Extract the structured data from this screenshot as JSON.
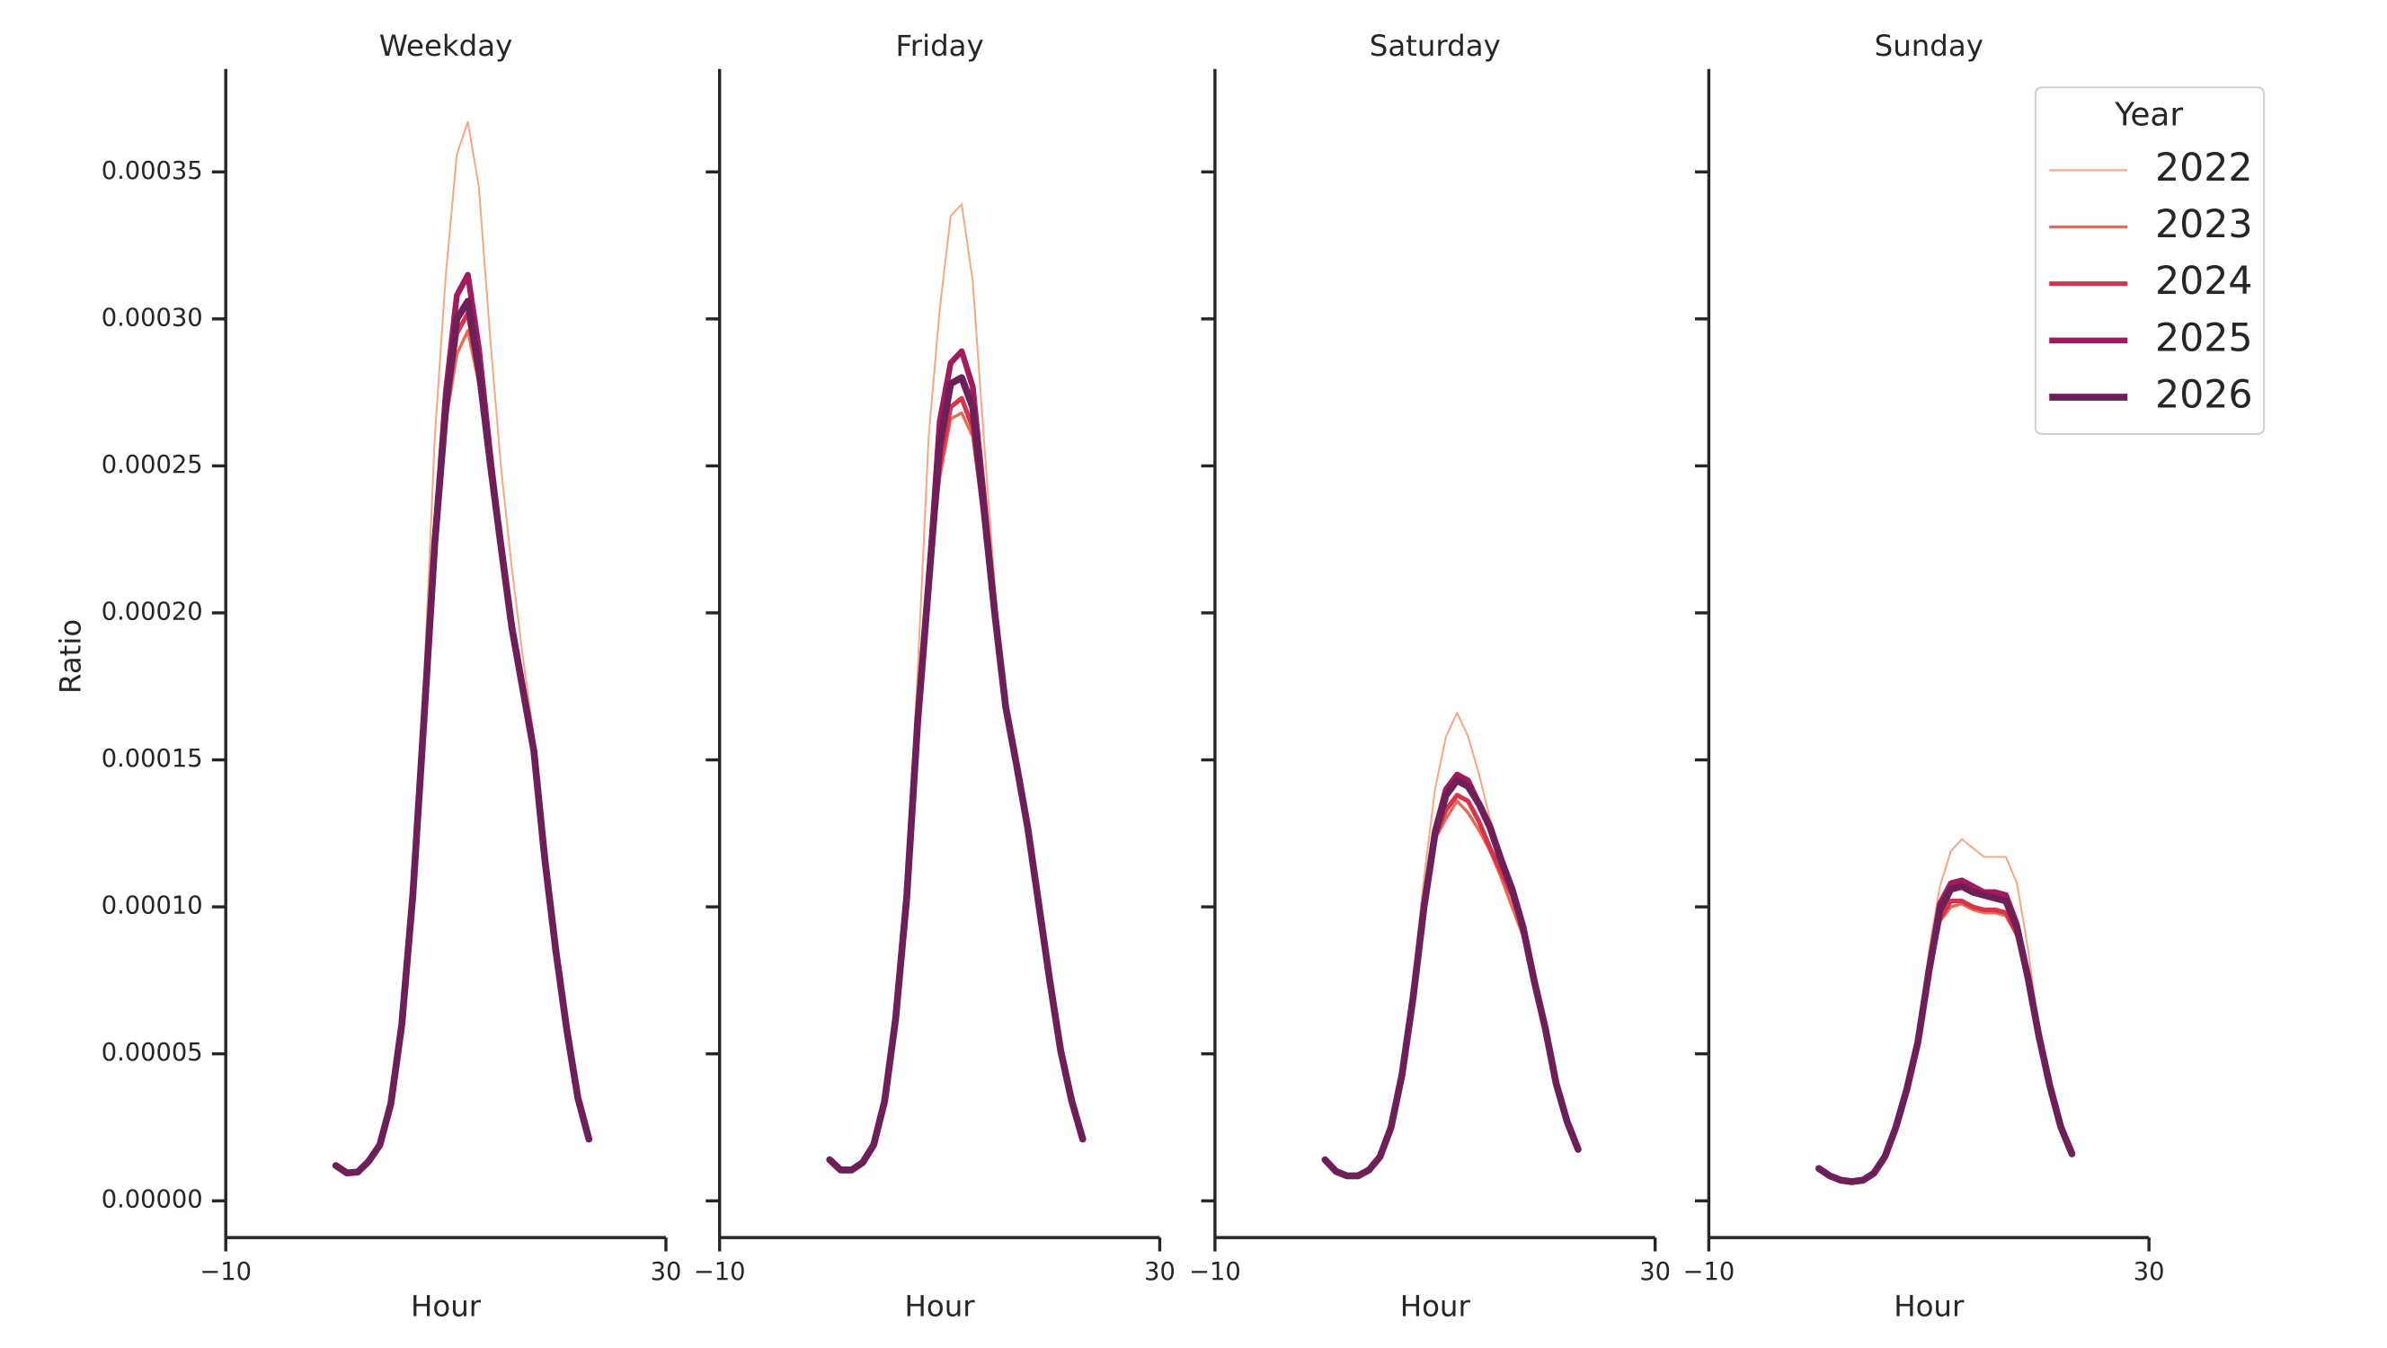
{
  "chart_data": [
    {
      "type": "line",
      "title": "Weekday",
      "xlabel": "Hour",
      "ylabel": "Ratio",
      "x": [
        0,
        1,
        2,
        3,
        4,
        5,
        6,
        7,
        8,
        9,
        10,
        11,
        12,
        13,
        14,
        15,
        16,
        17,
        18,
        19,
        20,
        21,
        22,
        23
      ],
      "xlim": [
        -10,
        30
      ],
      "xticks": [
        {
          "value": -10,
          "label": "−10"
        },
        30
      ],
      "ylim": [
        -1.25e-05,
        0.000385
      ],
      "yticks": [
        {
          "value": 0,
          "label": "0.00000"
        },
        {
          "value": 5e-05,
          "label": "0.00005"
        },
        {
          "value": 0.0001,
          "label": "0.00010"
        },
        {
          "value": 0.00015,
          "label": "0.00015"
        },
        {
          "value": 0.0002,
          "label": "0.00020"
        },
        {
          "value": 0.00025,
          "label": "0.00025"
        },
        {
          "value": 0.0003,
          "label": "0.00030"
        },
        {
          "value": 0.00035,
          "label": "0.00035"
        }
      ],
      "series": [
        {
          "name": "2022",
          "color": "#f4a886",
          "values": [
            1.2e-05,
            9.5e-06,
            9.8e-06,
            1.35e-05,
            1.9e-05,
            3.3e-05,
            6e-05,
            0.000115,
            0.000175,
            0.00026,
            0.000315,
            0.000356,
            0.000367,
            0.000345,
            0.000295,
            0.00025,
            0.000215,
            0.000185,
            0.000158,
            0.000116,
            8.5e-05,
            5.8e-05,
            3.5e-05,
            2.1e-05
          ]
        },
        {
          "name": "2023",
          "color": "#eb6a4f",
          "values": [
            1.2e-05,
            9.5e-06,
            9.8e-06,
            1.35e-05,
            1.9e-05,
            3.3e-05,
            6e-05,
            0.000104,
            0.000163,
            0.000224,
            0.000265,
            0.000288,
            0.000296,
            0.000278,
            0.000248,
            0.000223,
            0.000195,
            0.000174,
            0.000153,
            0.000116,
            8.5e-05,
            5.8e-05,
            3.5e-05,
            2.1e-05
          ]
        },
        {
          "name": "2024",
          "color": "#d8334a",
          "values": [
            1.2e-05,
            9.5e-06,
            9.8e-06,
            1.35e-05,
            1.9e-05,
            3.3e-05,
            6e-05,
            0.000104,
            0.000163,
            0.000224,
            0.000268,
            0.000295,
            0.000302,
            0.00028,
            0.00025,
            0.000223,
            0.000195,
            0.000174,
            0.000153,
            0.000116,
            8.5e-05,
            5.8e-05,
            3.5e-05,
            2.1e-05
          ]
        },
        {
          "name": "2025",
          "color": "#a11a5b",
          "values": [
            1.2e-05,
            9.5e-06,
            9.8e-06,
            1.35e-05,
            1.9e-05,
            3.3e-05,
            6e-05,
            0.000104,
            0.000163,
            0.000224,
            0.000275,
            0.000308,
            0.000315,
            0.00029,
            0.000255,
            0.000223,
            0.000195,
            0.000174,
            0.000153,
            0.000116,
            8.5e-05,
            5.8e-05,
            3.5e-05,
            2.1e-05
          ]
        },
        {
          "name": "2026",
          "color": "#6e1f57",
          "values": [
            1.2e-05,
            9.5e-06,
            9.8e-06,
            1.35e-05,
            1.9e-05,
            3.3e-05,
            6e-05,
            0.000104,
            0.000163,
            0.000224,
            0.00027,
            0.0003,
            0.000306,
            0.000283,
            0.000252,
            0.000223,
            0.000195,
            0.000174,
            0.000153,
            0.000116,
            8.5e-05,
            5.8e-05,
            3.5e-05,
            2.1e-05
          ]
        }
      ]
    },
    {
      "type": "line",
      "title": "Friday",
      "xlabel": "Hour",
      "x": [
        0,
        1,
        2,
        3,
        4,
        5,
        6,
        7,
        8,
        9,
        10,
        11,
        12,
        13,
        14,
        15,
        16,
        17,
        18,
        19,
        20,
        21,
        22,
        23
      ],
      "xlim": [
        -10,
        30
      ],
      "xticks": [
        {
          "value": -10,
          "label": "−10"
        },
        30
      ],
      "ylim": [
        -1.25e-05,
        0.000385
      ],
      "yticks": [
        0,
        5e-05,
        0.0001,
        0.00015,
        0.0002,
        0.00025,
        0.0003,
        0.00035
      ],
      "series": [
        {
          "name": "2022",
          "color": "#f4a886",
          "values": [
            1.4e-05,
            1.05e-05,
            1.05e-05,
            1.3e-05,
            1.9e-05,
            3.4e-05,
            6.2e-05,
            0.000108,
            0.00018,
            0.00026,
            0.000303,
            0.000335,
            0.000339,
            0.000313,
            0.00026,
            0.00021,
            0.00017,
            0.000148,
            0.000127,
            0.000101,
            7.5e-05,
            5.1e-05,
            3.4e-05,
            2.1e-05
          ]
        },
        {
          "name": "2023",
          "color": "#eb6a4f",
          "values": [
            1.4e-05,
            1.05e-05,
            1.05e-05,
            1.3e-05,
            1.9e-05,
            3.4e-05,
            6.2e-05,
            0.000103,
            0.000163,
            0.00021,
            0.000246,
            0.000266,
            0.000268,
            0.00026,
            0.000232,
            0.0002,
            0.000168,
            0.000148,
            0.000127,
            0.000101,
            7.5e-05,
            5.1e-05,
            3.4e-05,
            2.1e-05
          ]
        },
        {
          "name": "2024",
          "color": "#d8334a",
          "values": [
            1.4e-05,
            1.05e-05,
            1.05e-05,
            1.3e-05,
            1.9e-05,
            3.4e-05,
            6.2e-05,
            0.000103,
            0.000163,
            0.00021,
            0.00025,
            0.00027,
            0.000273,
            0.000263,
            0.000233,
            0.0002,
            0.000168,
            0.000148,
            0.000127,
            0.000101,
            7.5e-05,
            5.1e-05,
            3.4e-05,
            2.1e-05
          ]
        },
        {
          "name": "2025",
          "color": "#a11a5b",
          "values": [
            1.4e-05,
            1.05e-05,
            1.05e-05,
            1.3e-05,
            1.9e-05,
            3.4e-05,
            6.2e-05,
            0.000103,
            0.000163,
            0.00021,
            0.000265,
            0.000285,
            0.000289,
            0.000277,
            0.00024,
            0.0002,
            0.000168,
            0.000148,
            0.000127,
            0.000101,
            7.5e-05,
            5.1e-05,
            3.4e-05,
            2.1e-05
          ]
        },
        {
          "name": "2026",
          "color": "#6e1f57",
          "values": [
            1.4e-05,
            1.05e-05,
            1.05e-05,
            1.3e-05,
            1.9e-05,
            3.4e-05,
            6.2e-05,
            0.000103,
            0.000163,
            0.00021,
            0.000257,
            0.000278,
            0.00028,
            0.00027,
            0.000236,
            0.0002,
            0.000168,
            0.000148,
            0.000127,
            0.000101,
            7.5e-05,
            5.1e-05,
            3.4e-05,
            2.1e-05
          ]
        }
      ]
    },
    {
      "type": "line",
      "title": "Saturday",
      "xlabel": "Hour",
      "x": [
        0,
        1,
        2,
        3,
        4,
        5,
        6,
        7,
        8,
        9,
        10,
        11,
        12,
        13,
        14,
        15,
        16,
        17,
        18,
        19,
        20,
        21,
        22,
        23
      ],
      "xlim": [
        -10,
        30
      ],
      "xticks": [
        {
          "value": -10,
          "label": "−10"
        },
        30
      ],
      "ylim": [
        -1.25e-05,
        0.000385
      ],
      "yticks": [
        0,
        5e-05,
        0.0001,
        0.00015,
        0.0002,
        0.00025,
        0.0003,
        0.00035
      ],
      "series": [
        {
          "name": "2022",
          "color": "#f4a886",
          "values": [
            1.4e-05,
            1e-05,
            8.5e-06,
            8.5e-06,
            1.05e-05,
            1.5e-05,
            2.5e-05,
            4.5e-05,
            7.5e-05,
            0.00011,
            0.00014,
            0.000158,
            0.000166,
            0.000158,
            0.000145,
            0.00013,
            0.000118,
            0.000106,
            9.3e-05,
            7.5e-05,
            5.9e-05,
            4e-05,
            2.7e-05,
            1.75e-05
          ]
        },
        {
          "name": "2023",
          "color": "#eb6a4f",
          "values": [
            1.4e-05,
            1e-05,
            8.5e-06,
            8.5e-06,
            1.05e-05,
            1.5e-05,
            2.5e-05,
            4.3e-05,
            6.9e-05,
            0.0001,
            0.000123,
            0.00013,
            0.000136,
            0.000132,
            0.000126,
            0.000119,
            0.00011,
            0.0001,
            9e-05,
            7.4e-05,
            5.9e-05,
            4e-05,
            2.7e-05,
            1.75e-05
          ]
        },
        {
          "name": "2024",
          "color": "#d8334a",
          "values": [
            1.4e-05,
            1e-05,
            8.5e-06,
            8.5e-06,
            1.05e-05,
            1.5e-05,
            2.5e-05,
            4.3e-05,
            6.9e-05,
            0.0001,
            0.000124,
            0.000133,
            0.000138,
            0.000136,
            0.000129,
            0.00012,
            0.000112,
            0.000104,
            9.3e-05,
            7.5e-05,
            5.9e-05,
            4e-05,
            2.7e-05,
            1.75e-05
          ]
        },
        {
          "name": "2025",
          "color": "#a11a5b",
          "values": [
            1.4e-05,
            1e-05,
            8.5e-06,
            8.5e-06,
            1.05e-05,
            1.5e-05,
            2.5e-05,
            4.3e-05,
            6.9e-05,
            0.0001,
            0.000126,
            0.00014,
            0.000145,
            0.000143,
            0.000135,
            0.000127,
            0.000116,
            0.000106,
            9.3e-05,
            7.5e-05,
            5.9e-05,
            4e-05,
            2.7e-05,
            1.75e-05
          ]
        },
        {
          "name": "2026",
          "color": "#6e1f57",
          "values": [
            1.4e-05,
            1e-05,
            8.5e-06,
            8.5e-06,
            1.05e-05,
            1.5e-05,
            2.5e-05,
            4.3e-05,
            6.9e-05,
            0.0001,
            0.000125,
            0.000138,
            0.000143,
            0.000141,
            0.000135,
            0.000127,
            0.000116,
            0.000106,
            9.3e-05,
            7.5e-05,
            5.9e-05,
            4e-05,
            2.7e-05,
            1.75e-05
          ]
        }
      ]
    },
    {
      "type": "line",
      "title": "Sunday",
      "xlabel": "Hour",
      "legend_title": "Year",
      "x": [
        0,
        1,
        2,
        3,
        4,
        5,
        6,
        7,
        8,
        9,
        10,
        11,
        12,
        13,
        14,
        15,
        16,
        17,
        18,
        19,
        20,
        21,
        22,
        23
      ],
      "xlim": [
        -10,
        30
      ],
      "xticks": [
        {
          "value": -10,
          "label": "−10"
        },
        30
      ],
      "ylim": [
        -1.25e-05,
        0.000385
      ],
      "yticks": [
        0,
        5e-05,
        0.0001,
        0.00015,
        0.0002,
        0.00025,
        0.0003,
        0.00035
      ],
      "series": [
        {
          "name": "2022",
          "color": "#f4a886",
          "values": [
            1.1e-05,
            8.5e-06,
            7e-06,
            6.5e-06,
            7e-06,
            9.4e-06,
            1.5e-05,
            2.5e-05,
            3.8e-05,
            5.6e-05,
            8.5e-05,
            0.000107,
            0.000119,
            0.000123,
            0.00012,
            0.000117,
            0.000117,
            0.000117,
            0.000108,
            8.6e-05,
            5.8e-05,
            3.9e-05,
            2.5e-05,
            1.6e-05
          ]
        },
        {
          "name": "2023",
          "color": "#eb6a4f",
          "values": [
            1.1e-05,
            8.5e-06,
            7e-06,
            6.5e-06,
            7e-06,
            9.4e-06,
            1.5e-05,
            2.5e-05,
            3.8e-05,
            5.4e-05,
            7.6e-05,
            9.5e-05,
            0.0001,
            0.000101,
            9.9e-05,
            9.8e-05,
            9.8e-05,
            9.7e-05,
            9e-05,
            7.5e-05,
            5.6e-05,
            3.9e-05,
            2.5e-05,
            1.6e-05
          ]
        },
        {
          "name": "2024",
          "color": "#d8334a",
          "values": [
            1.1e-05,
            8.5e-06,
            7e-06,
            6.5e-06,
            7e-06,
            9.4e-06,
            1.5e-05,
            2.5e-05,
            3.8e-05,
            5.4e-05,
            7.7e-05,
            9.6e-05,
            0.000102,
            0.000102,
            0.0001,
            9.9e-05,
            9.9e-05,
            9.8e-05,
            9.1e-05,
            7.5e-05,
            5.6e-05,
            3.9e-05,
            2.5e-05,
            1.6e-05
          ]
        },
        {
          "name": "2025",
          "color": "#a11a5b",
          "values": [
            1.1e-05,
            8.5e-06,
            7e-06,
            6.5e-06,
            7e-06,
            9.4e-06,
            1.5e-05,
            2.5e-05,
            3.8e-05,
            5.4e-05,
            7.9e-05,
            0.000101,
            0.000108,
            0.000109,
            0.000107,
            0.000105,
            0.000105,
            0.000104,
            9.4e-05,
            7.6e-05,
            5.6e-05,
            3.9e-05,
            2.5e-05,
            1.6e-05
          ]
        },
        {
          "name": "2026",
          "color": "#6e1f57",
          "values": [
            1.1e-05,
            8.5e-06,
            7e-06,
            6.5e-06,
            7e-06,
            9.4e-06,
            1.5e-05,
            2.5e-05,
            3.8e-05,
            5.4e-05,
            7.8e-05,
            9.9e-05,
            0.000106,
            0.000107,
            0.000105,
            0.000104,
            0.000103,
            0.000102,
            9.3e-05,
            7.6e-05,
            5.6e-05,
            3.9e-05,
            2.5e-05,
            1.6e-05
          ]
        }
      ]
    }
  ]
}
